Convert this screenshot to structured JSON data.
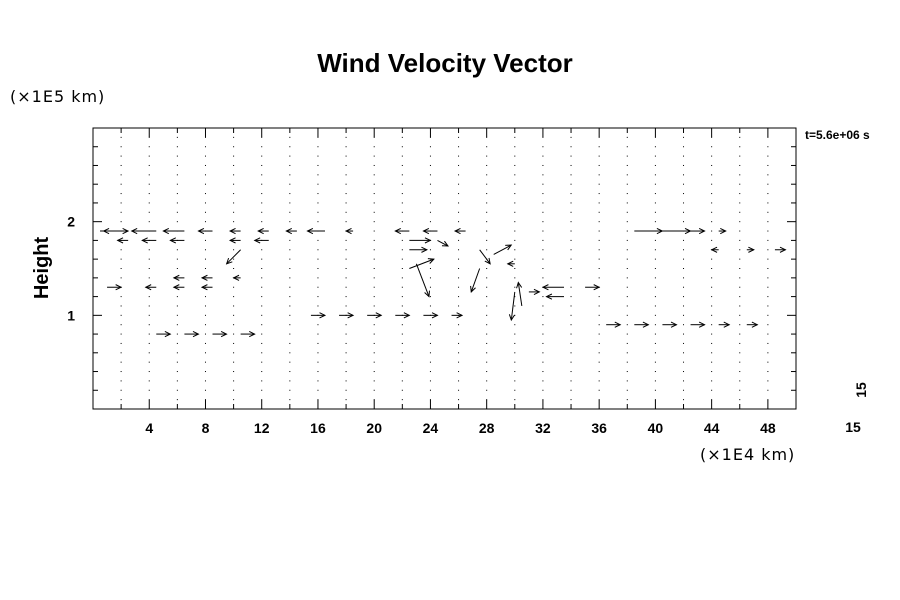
{
  "chart_data": {
    "type": "vector_field",
    "title": "Wind Velocity Vector",
    "ylabel": "Height",
    "y_unit": "(×1E5 km)",
    "x_unit": "(×1E4 km)",
    "time_label": "t=5.6e+06 s",
    "reference_label_vertical": "15",
    "reference_label_horizontal": "15",
    "xlim": [
      0,
      50
    ],
    "ylim": [
      0,
      3
    ],
    "x_ticks": [
      4,
      8,
      12,
      16,
      20,
      24,
      28,
      32,
      36,
      40,
      44,
      48
    ],
    "y_ticks": [
      1,
      2
    ],
    "vectors": [
      {
        "x": 0.5,
        "y": 1.9,
        "u": 4.0,
        "v": 0.0
      },
      {
        "x": 2.5,
        "y": 1.9,
        "u": -3.5,
        "v": 0.0
      },
      {
        "x": 4.5,
        "y": 1.9,
        "u": -3.5,
        "v": 0.0
      },
      {
        "x": 6.5,
        "y": 1.9,
        "u": -3.0,
        "v": 0.0
      },
      {
        "x": 8.5,
        "y": 1.9,
        "u": -2.0,
        "v": 0.0
      },
      {
        "x": 10.5,
        "y": 1.9,
        "u": -1.5,
        "v": 0.0
      },
      {
        "x": 12.5,
        "y": 1.9,
        "u": -1.5,
        "v": 0.0
      },
      {
        "x": 14.5,
        "y": 1.9,
        "u": -1.5,
        "v": 0.0
      },
      {
        "x": 16.5,
        "y": 1.9,
        "u": -2.5,
        "v": 0.0
      },
      {
        "x": 18.5,
        "y": 1.9,
        "u": -1.0,
        "v": 0.0
      },
      {
        "x": 22.5,
        "y": 1.9,
        "u": -2.0,
        "v": 0.0
      },
      {
        "x": 24.5,
        "y": 1.9,
        "u": -2.0,
        "v": 0.0
      },
      {
        "x": 26.5,
        "y": 1.9,
        "u": -1.5,
        "v": 0.0
      },
      {
        "x": 38.5,
        "y": 1.9,
        "u": 4.0,
        "v": 0.0
      },
      {
        "x": 40.5,
        "y": 1.9,
        "u": 4.0,
        "v": 0.0
      },
      {
        "x": 42.5,
        "y": 1.9,
        "u": 2.0,
        "v": 0.0
      },
      {
        "x": 44.5,
        "y": 1.9,
        "u": 1.0,
        "v": 0.0
      },
      {
        "x": 2.5,
        "y": 1.8,
        "u": -1.5,
        "v": 0.0
      },
      {
        "x": 4.5,
        "y": 1.8,
        "u": -2.0,
        "v": 0.0
      },
      {
        "x": 6.5,
        "y": 1.8,
        "u": -2.0,
        "v": 0.0
      },
      {
        "x": 10.5,
        "y": 1.8,
        "u": -1.5,
        "v": 0.0
      },
      {
        "x": 12.5,
        "y": 1.8,
        "u": -2.0,
        "v": 0.0
      },
      {
        "x": 22.5,
        "y": 1.8,
        "u": 3.0,
        "v": 0.0
      },
      {
        "x": 24.5,
        "y": 1.8,
        "u": 1.5,
        "v": -0.06
      },
      {
        "x": 10.5,
        "y": 1.7,
        "u": -2.0,
        "v": -0.15
      },
      {
        "x": 22.5,
        "y": 1.7,
        "u": 2.5,
        "v": 0.0
      },
      {
        "x": 27.5,
        "y": 1.7,
        "u": 1.5,
        "v": -0.15
      },
      {
        "x": 28.5,
        "y": 1.65,
        "u": 2.5,
        "v": 0.1
      },
      {
        "x": 30.0,
        "y": 1.55,
        "u": -1.0,
        "v": 0.0
      },
      {
        "x": 22.5,
        "y": 1.5,
        "u": 3.5,
        "v": 0.1
      },
      {
        "x": 23.0,
        "y": 1.55,
        "u": 1.8,
        "v": -0.35
      },
      {
        "x": 27.5,
        "y": 1.5,
        "u": -1.2,
        "v": -0.25
      },
      {
        "x": 33.5,
        "y": 1.3,
        "u": -3.0,
        "v": 0.0
      },
      {
        "x": 35.0,
        "y": 1.3,
        "u": 2.0,
        "v": 0.0
      },
      {
        "x": 33.5,
        "y": 1.2,
        "u": -2.5,
        "v": 0.0
      },
      {
        "x": 31.0,
        "y": 1.25,
        "u": 1.5,
        "v": 0.0
      },
      {
        "x": 30.0,
        "y": 1.25,
        "u": -0.5,
        "v": -0.3
      },
      {
        "x": 30.5,
        "y": 1.1,
        "u": -0.5,
        "v": 0.25
      },
      {
        "x": 1.0,
        "y": 1.3,
        "u": 2.0,
        "v": 0.0
      },
      {
        "x": 4.5,
        "y": 1.3,
        "u": -1.5,
        "v": 0.0
      },
      {
        "x": 6.5,
        "y": 1.3,
        "u": -1.5,
        "v": 0.0
      },
      {
        "x": 8.5,
        "y": 1.3,
        "u": -1.5,
        "v": 0.0
      },
      {
        "x": 6.5,
        "y": 1.4,
        "u": -1.5,
        "v": 0.0
      },
      {
        "x": 8.5,
        "y": 1.4,
        "u": -1.5,
        "v": 0.0
      },
      {
        "x": 10.5,
        "y": 1.4,
        "u": -1.0,
        "v": 0.0
      },
      {
        "x": 15.5,
        "y": 1.0,
        "u": 2.0,
        "v": 0.0
      },
      {
        "x": 17.5,
        "y": 1.0,
        "u": 2.0,
        "v": 0.0
      },
      {
        "x": 19.5,
        "y": 1.0,
        "u": 2.0,
        "v": 0.0
      },
      {
        "x": 21.5,
        "y": 1.0,
        "u": 2.0,
        "v": 0.0
      },
      {
        "x": 23.5,
        "y": 1.0,
        "u": 2.0,
        "v": 0.0
      },
      {
        "x": 25.5,
        "y": 1.0,
        "u": 1.5,
        "v": 0.0
      },
      {
        "x": 4.5,
        "y": 0.8,
        "u": 2.0,
        "v": 0.0
      },
      {
        "x": 6.5,
        "y": 0.8,
        "u": 2.0,
        "v": 0.0
      },
      {
        "x": 8.5,
        "y": 0.8,
        "u": 2.0,
        "v": 0.0
      },
      {
        "x": 10.5,
        "y": 0.8,
        "u": 2.0,
        "v": 0.0
      },
      {
        "x": 36.5,
        "y": 0.9,
        "u": 2.0,
        "v": 0.0
      },
      {
        "x": 38.5,
        "y": 0.9,
        "u": 2.0,
        "v": 0.0
      },
      {
        "x": 40.5,
        "y": 0.9,
        "u": 2.0,
        "v": 0.0
      },
      {
        "x": 42.5,
        "y": 0.9,
        "u": 2.0,
        "v": 0.0
      },
      {
        "x": 44.5,
        "y": 0.9,
        "u": 1.5,
        "v": 0.0
      },
      {
        "x": 46.5,
        "y": 0.9,
        "u": 1.5,
        "v": 0.0
      },
      {
        "x": 44.5,
        "y": 1.7,
        "u": -1.0,
        "v": 0.0
      },
      {
        "x": 46.5,
        "y": 1.7,
        "u": 1.0,
        "v": 0.0
      },
      {
        "x": 48.5,
        "y": 1.7,
        "u": 1.5,
        "v": 0.0
      }
    ],
    "grid": false,
    "legend": "none"
  }
}
